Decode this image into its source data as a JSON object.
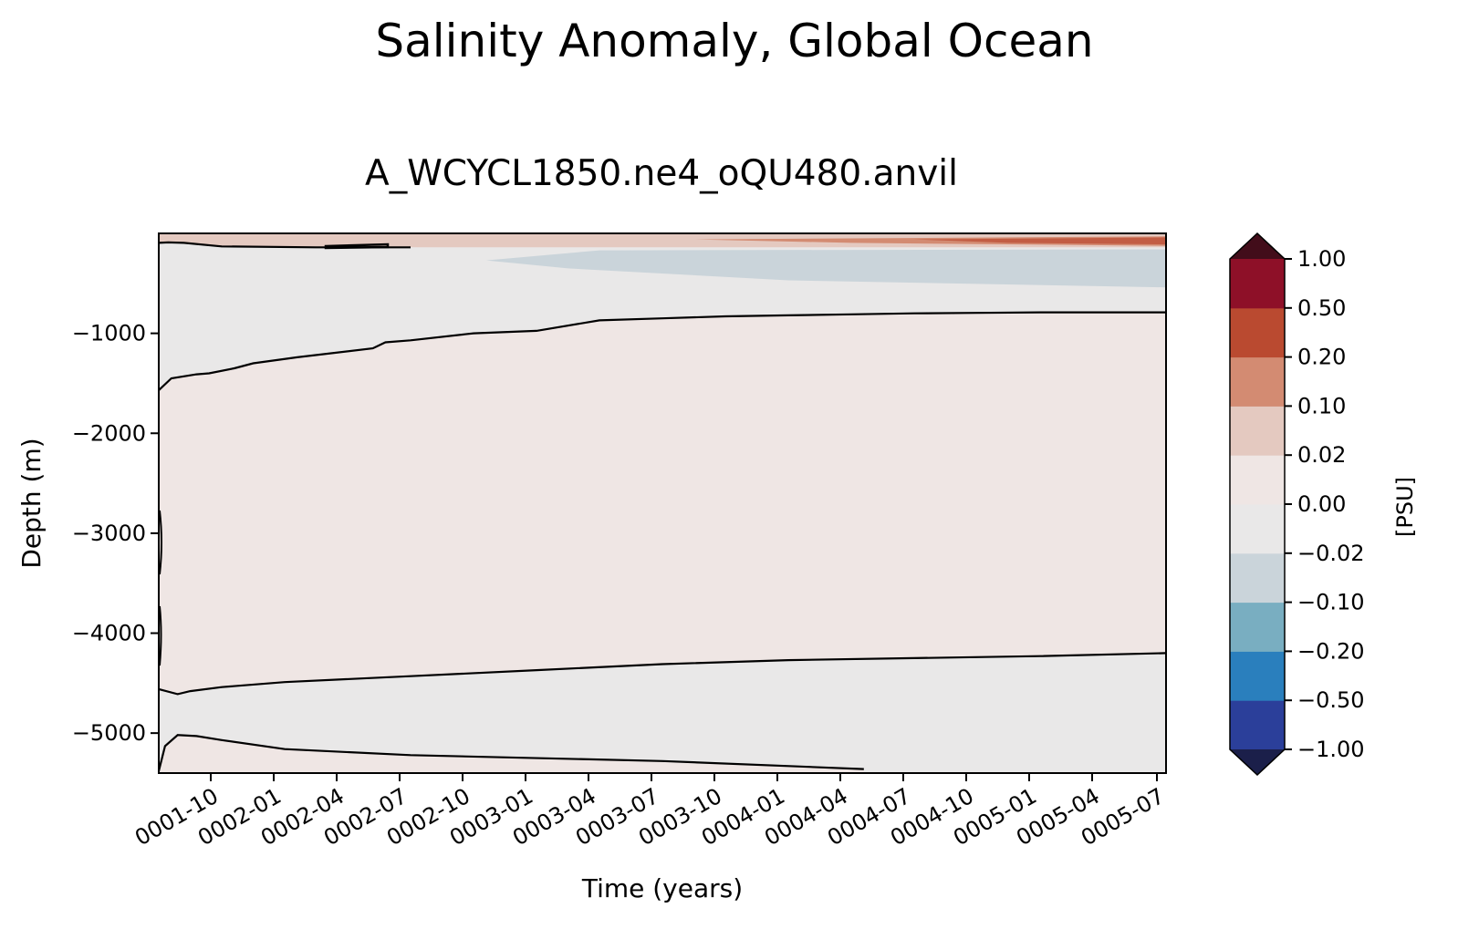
{
  "chart_data": {
    "type": "heatmap",
    "title": "Salinity Anomaly, Global Ocean",
    "subtitle": "A_WCYCL1850.ne4_oQU480.anvil",
    "xlabel": "Time (years)",
    "ylabel": "Depth (m)",
    "x_tick_labels": [
      "0001-10",
      "0002-01",
      "0002-04",
      "0002-07",
      "0002-10",
      "0003-01",
      "0003-04",
      "0003-07",
      "0003-10",
      "0004-01",
      "0004-04",
      "0004-07",
      "0004-10",
      "0005-01",
      "0005-04",
      "0005-07"
    ],
    "x_range": [
      "0001-07",
      "0005-07"
    ],
    "y_ticks": [
      -1000,
      -2000,
      -3000,
      -4000,
      -5000
    ],
    "y_tick_labels": [
      "−1000",
      "−2000",
      "−3000",
      "−4000",
      "−5000"
    ],
    "ylim": [
      -5400,
      0
    ],
    "colorbar": {
      "label": "[PSU]",
      "levels": [
        -1.0,
        -0.5,
        -0.2,
        -0.1,
        -0.02,
        0.0,
        0.02,
        0.1,
        0.2,
        0.5,
        1.0
      ],
      "tick_labels": [
        "1.00",
        "0.50",
        "0.20",
        "0.10",
        "0.02",
        "0.00",
        "−0.02",
        "−0.10",
        "−0.20",
        "−0.50",
        "−1.00"
      ],
      "colors": [
        "#2b3f9a",
        "#2a7fbd",
        "#79aec1",
        "#cad4da",
        "#e9e8e8",
        "#efe6e4",
        "#e4c9c0",
        "#d38b72",
        "#ba4a30",
        "#8e1028"
      ],
      "under_color": "#1b1f4a",
      "over_color": "#420d1a",
      "extend": "both"
    },
    "regions": [
      {
        "description_range": "0 to 0.02 PSU",
        "depth_top": -950,
        "depth_bottom": -4500,
        "color": "#efe6e4"
      },
      {
        "description_range": "-0.02 to 0 PSU",
        "depth_top": -100,
        "depth_bottom": -900,
        "color": "#e9e8e8"
      },
      {
        "description_range": "-0.02 to 0 PSU",
        "depth_top": -4300,
        "depth_bottom": -5150,
        "color": "#e9e8e8"
      },
      {
        "description_range": "0 to 0.02 PSU",
        "depth_top": -5150,
        "depth_bottom": -5400,
        "color": "#efe6e4"
      },
      {
        "description_range": "-0.10 to -0.02 PSU",
        "depth_top": -150,
        "depth_bottom": -450,
        "color": "#cad4da"
      },
      {
        "description_range": "0.02 to 0.20 PSU",
        "depth_top": 0,
        "depth_bottom": -120,
        "color": "#d38b72"
      }
    ],
    "zero_contours": [
      {
        "x_years": [
          0.0,
          0.15,
          0.4,
          1.0,
          2.5,
          4.0
        ],
        "depth": [
          -95,
          -90,
          -95,
          -130,
          -140,
          -140
        ]
      },
      {
        "x_years": [
          0.0,
          0.2,
          0.6,
          0.8,
          1.2,
          1.5,
          2.2,
          3.4,
          3.6,
          4.0,
          5.0,
          6.0,
          7.0,
          8.0,
          9.0,
          10.0,
          11.0,
          12.0,
          13.0,
          14.0,
          15.0,
          16.0
        ],
        "depth": [
          -1570,
          -1450,
          -1410,
          -1400,
          -1350,
          -1300,
          -1240,
          -1150,
          -1090,
          -1070,
          -1000,
          -975,
          -870,
          -850,
          -830,
          -820,
          -810,
          -800,
          -795,
          -790,
          -790,
          -790
        ]
      },
      {
        "x_years": [
          0.0,
          0.3,
          0.5,
          1.0,
          2.0,
          4.0,
          6.0,
          8.0,
          10.0,
          12.0,
          14.0,
          16.0
        ],
        "depth": [
          -4560,
          -4610,
          -4580,
          -4540,
          -4490,
          -4430,
          -4370,
          -4310,
          -4270,
          -4250,
          -4230,
          -4200
        ]
      },
      {
        "x_years": [
          0.0,
          0.1,
          0.3,
          0.6,
          1.0,
          2.0,
          4.0,
          8.0,
          11.2
        ],
        "depth": [
          -5380,
          -5130,
          -5020,
          -5030,
          -5070,
          -5160,
          -5220,
          -5280,
          -5360
        ]
      }
    ]
  }
}
